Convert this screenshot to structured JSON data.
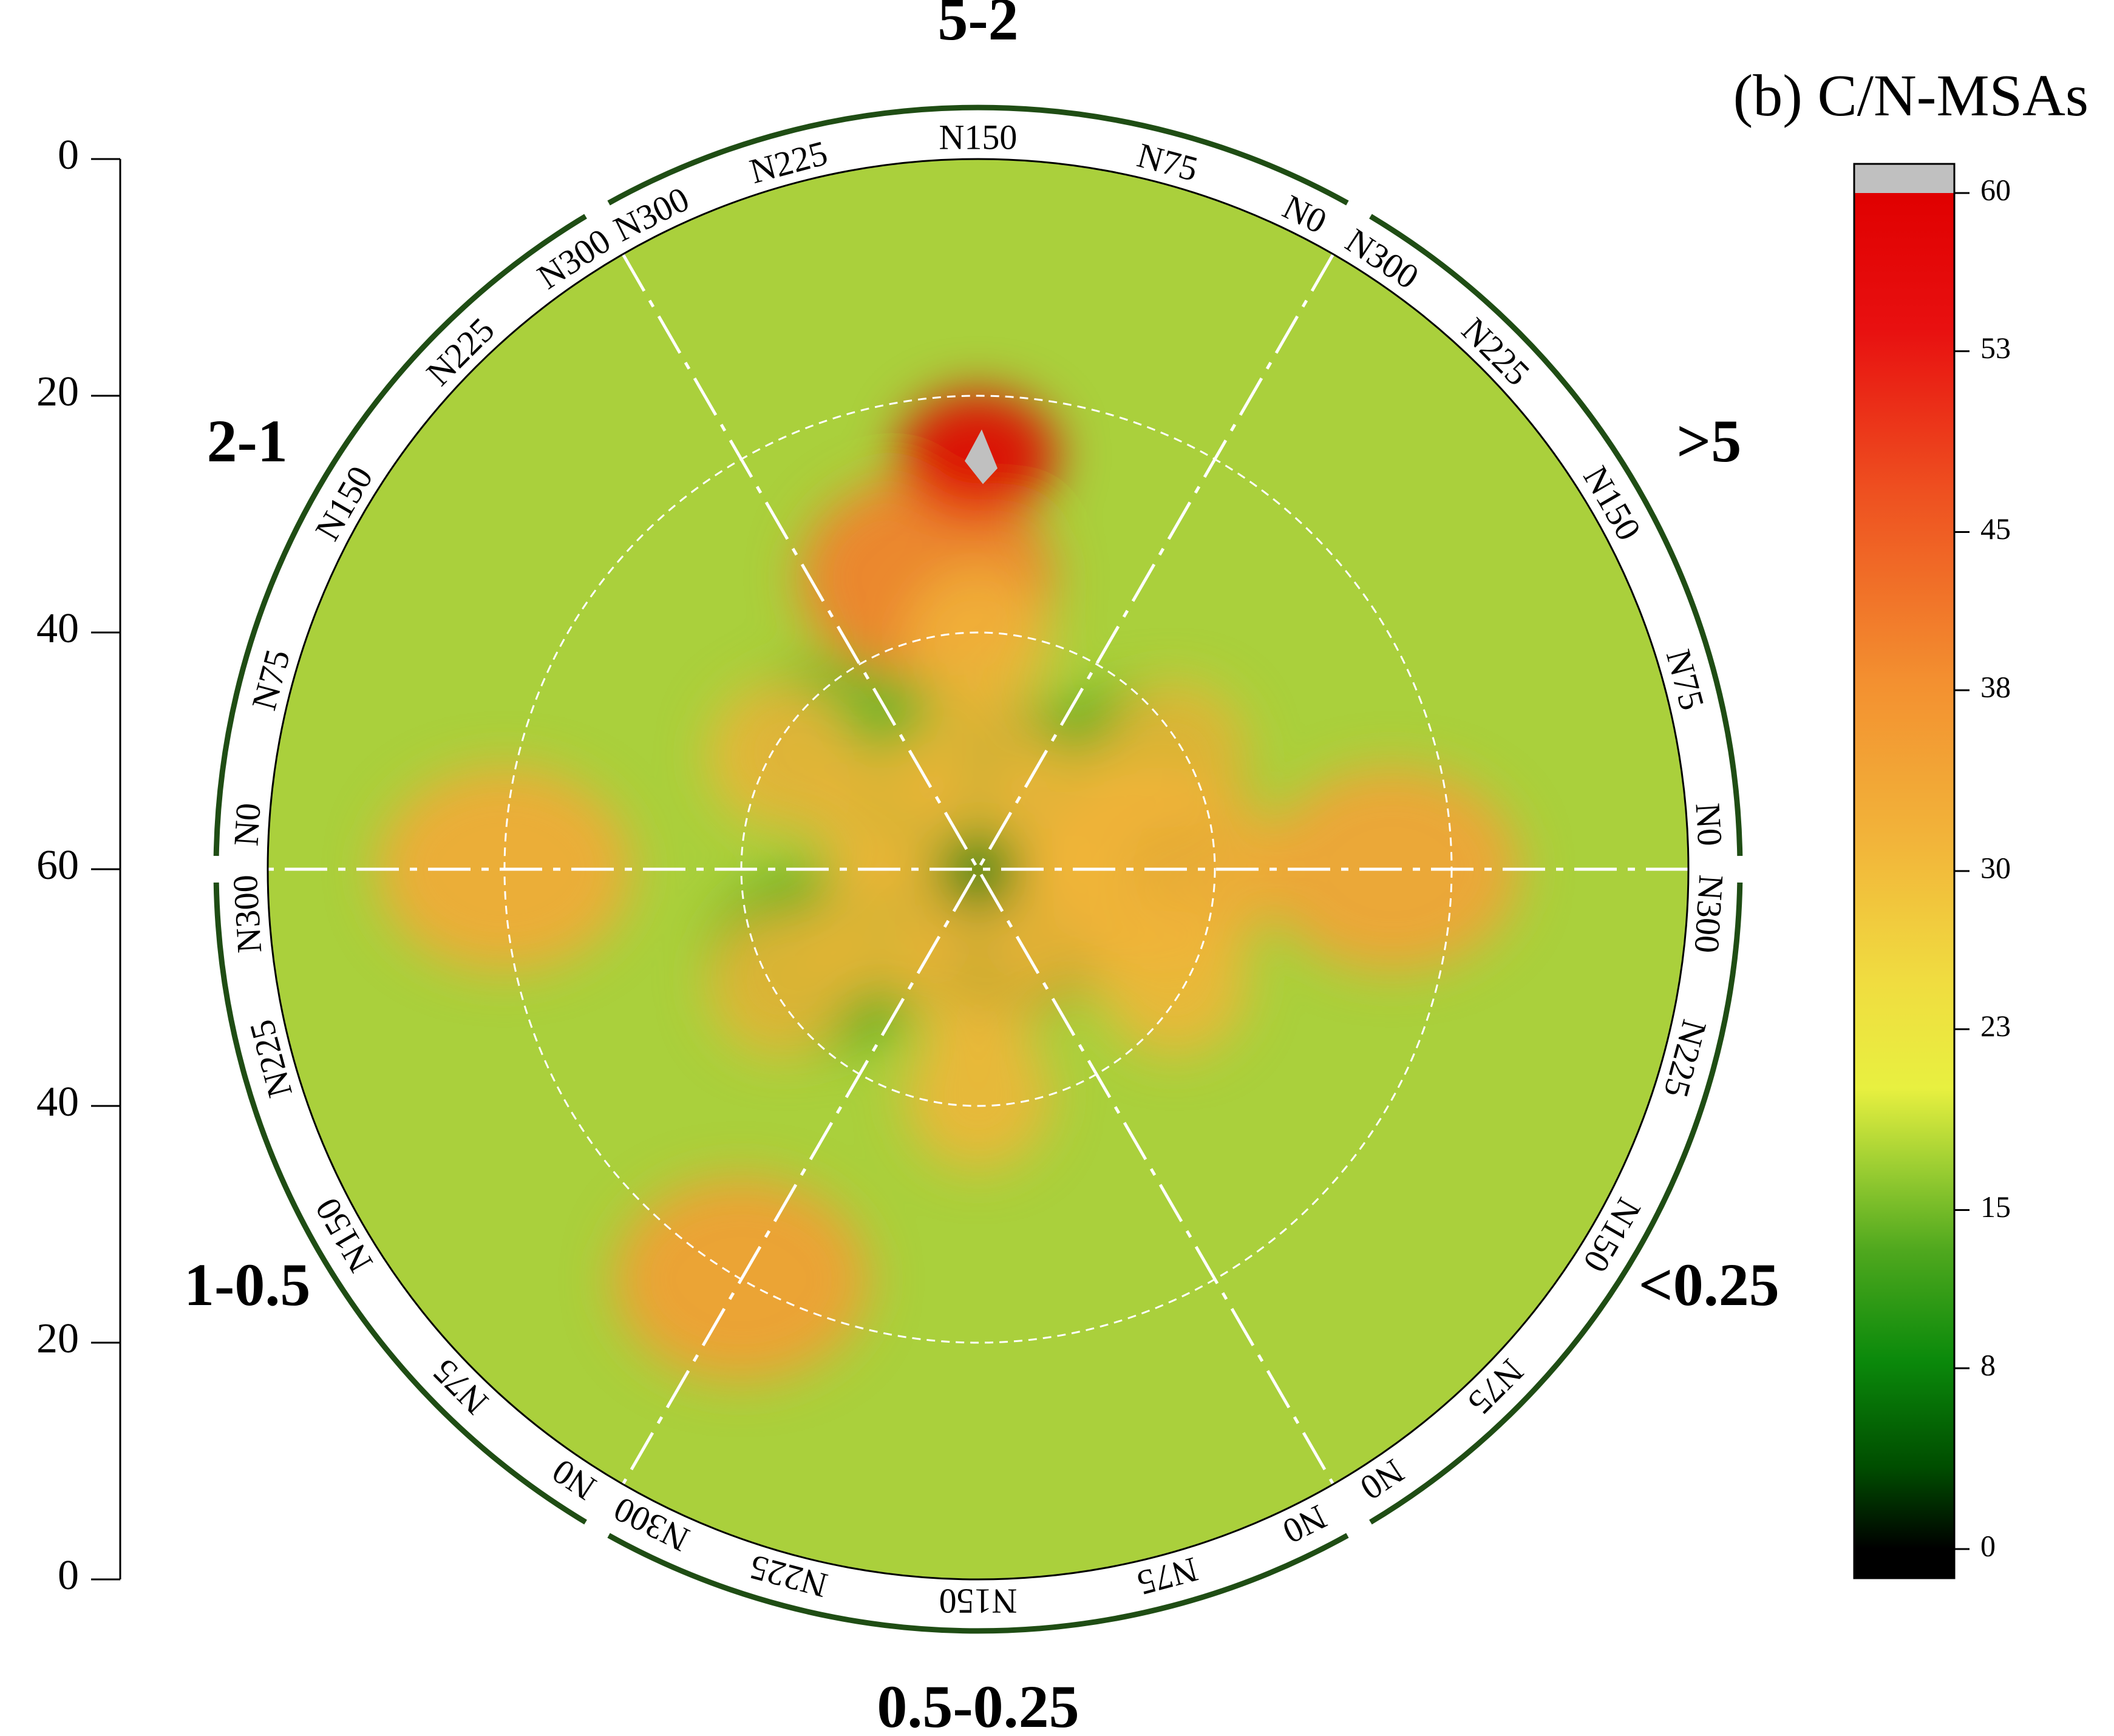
{
  "title": "(b) C/N-MSAs",
  "chart_data": {
    "type": "heatmap",
    "subtype": "polar-contour",
    "title": "(b) C/N-MSAs",
    "radial_axis": {
      "ticks_upper": [
        "0",
        "20",
        "40",
        "60"
      ],
      "ticks_lower": [
        "60",
        "40",
        "20",
        "0"
      ],
      "range": [
        0,
        60
      ],
      "ring_values": [
        20,
        40
      ]
    },
    "sectors": [
      {
        "label": "5-2",
        "ticks": [
          "N300",
          "N225",
          "N150",
          "N75",
          "N0"
        ]
      },
      {
        "label": ">5",
        "ticks": [
          "N300",
          "N225",
          "N150",
          "N75",
          "N0"
        ]
      },
      {
        "label": "<0.25",
        "ticks": [
          "N300",
          "N225",
          "N150",
          "N75",
          "N0"
        ]
      },
      {
        "label": "0.5-0.25",
        "ticks": [
          "N0",
          "N75",
          "N150",
          "N225",
          "N300"
        ]
      },
      {
        "label": "1-0.5",
        "ticks": [
          "N0",
          "N75",
          "N150",
          "N225",
          "N300"
        ]
      },
      {
        "label": "2-1",
        "ticks": [
          "N0",
          "N75",
          "N150",
          "N225",
          "N300"
        ]
      }
    ],
    "n_axis_range": [
      0,
      300
    ],
    "grid": "dashed rings and dash-dot sector dividers",
    "colorbar": {
      "ticks": [
        "0",
        "8",
        "15",
        "23",
        "30",
        "38",
        "45",
        "53",
        "60"
      ],
      "range": [
        0,
        60
      ],
      "over_color": "#c0c0c0",
      "under_color": "#000000",
      "colors": [
        "#000000",
        "#008000",
        "#9acd32",
        "#f0f040",
        "#f5a030",
        "#e60000"
      ]
    },
    "hotspots": [
      {
        "sector": "5-2",
        "r": 25,
        "n": 150,
        "value": 60,
        "note": "peak (grey = above 60)"
      },
      {
        "sector": "5-2",
        "r": 35,
        "n": 200,
        "value": 40
      },
      {
        "sector": ">5",
        "r": 45,
        "n": 0,
        "value": 30
      },
      {
        "sector": "<0.25",
        "r": 25,
        "n": 300,
        "value": 32
      },
      {
        "sector": "0.5-0.25",
        "r": 20,
        "n": 300,
        "value": 33
      },
      {
        "sector": "2-1",
        "r": 20,
        "n": 0,
        "value": 30
      },
      {
        "sector": "5-2",
        "r": 52,
        "n": 200,
        "value": 9
      },
      {
        "sector": "<0.25",
        "r": 55,
        "n": 0,
        "value": 6
      },
      {
        "sector": "0.5-0.25",
        "r": 55,
        "n": 0,
        "value": 7
      },
      {
        "sector": ">5",
        "r": 45,
        "n": 150,
        "value": 11
      },
      {
        "sector": "1-0.5",
        "r": 45,
        "n": 150,
        "value": 11
      },
      {
        "sector": "2-1",
        "r": 45,
        "n": 225,
        "value": 12
      }
    ],
    "background_value": 14
  }
}
